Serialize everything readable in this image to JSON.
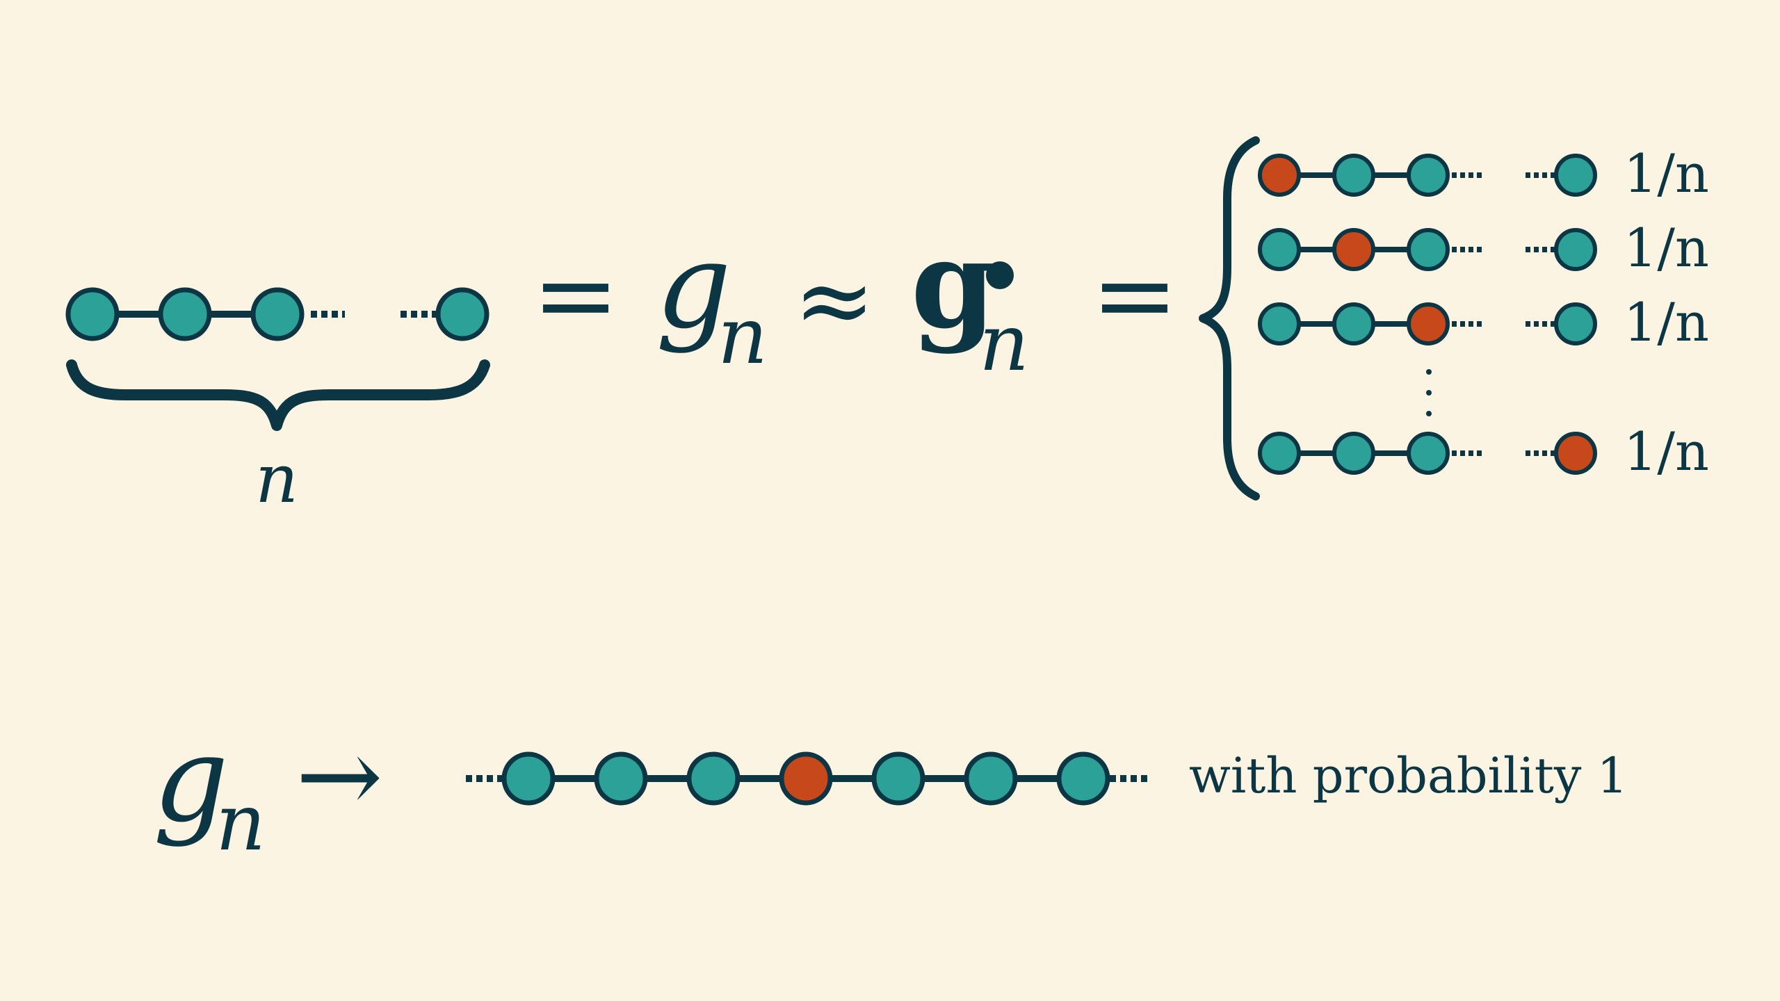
{
  "colors": {
    "background": "#fcf4e2",
    "ink": "#0d3644",
    "node_default": "#2ba197",
    "node_root": "#c7481a"
  },
  "top_equation": {
    "brace_label": "n",
    "equals_1": "=",
    "g": "g",
    "g_subscript": "n",
    "approx": "≈",
    "g_bold": "g",
    "g_bold_subscript": "n",
    "equals_2": "="
  },
  "case_rows": [
    {
      "rooted_node": "1",
      "probability": "1/n"
    },
    {
      "rooted_node": "2",
      "probability": "1/n"
    },
    {
      "rooted_node": "3",
      "probability": "1/n"
    },
    {
      "rooted_node": "last",
      "probability": "1/n"
    }
  ],
  "bottom_limit": {
    "g": "g",
    "g_subscript": "n",
    "arrow": "→",
    "caption": "with probability 1"
  }
}
